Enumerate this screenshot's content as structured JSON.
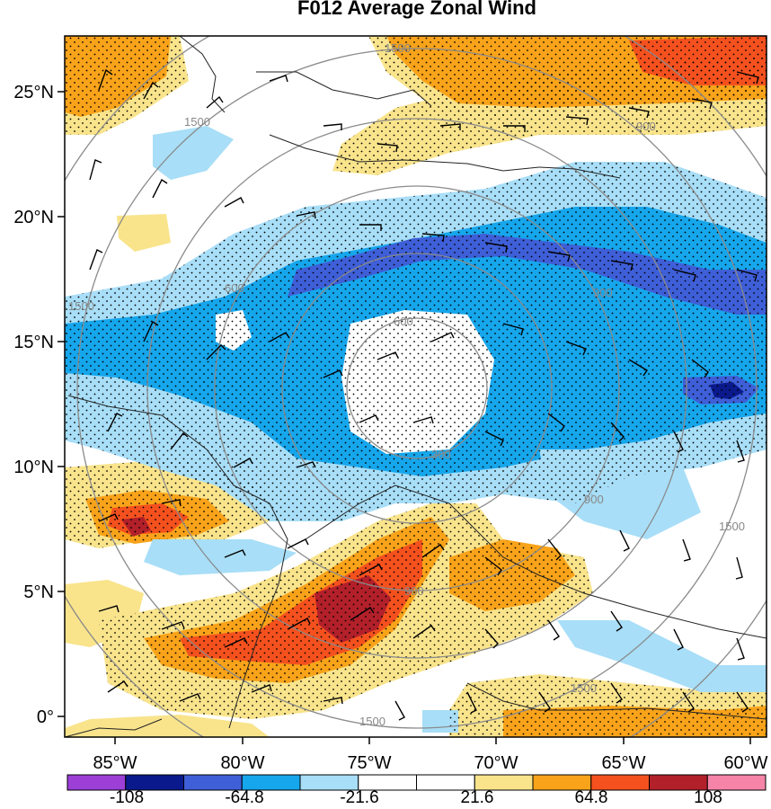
{
  "title": "F012 Average Zonal Wind",
  "map": {
    "projection": "lat-lon",
    "lat_ticks": [
      "25°N",
      "20°N",
      "15°N",
      "10°N",
      "5°N",
      "0°"
    ],
    "lon_ticks": [
      "85°W",
      "80°W",
      "75°W",
      "70°W",
      "65°W",
      "60°W"
    ],
    "lat_range": [
      -0.5,
      27
    ],
    "lon_range": [
      -87,
      -59.5
    ],
    "ring_labels": [
      "1500",
      "1500",
      "1500",
      "900",
      "900",
      "900",
      "300",
      "600",
      "600",
      "1500",
      "1500",
      "1500",
      "900"
    ],
    "stippled_regions": true,
    "wind_barbs": true,
    "coastlines": true
  },
  "colorbar": {
    "labels": [
      "-108",
      "-64.8",
      "-21.6",
      "21.6",
      "64.8",
      "108"
    ],
    "colors": [
      "#9b3fd6",
      "#0a1a8c",
      "#3f5fd8",
      "#16a6ec",
      "#a8def7",
      "#ffffff",
      "#ffffff",
      "#f9e48c",
      "#f8a31a",
      "#f4511e",
      "#b2202a",
      "#f584a8"
    ]
  }
}
